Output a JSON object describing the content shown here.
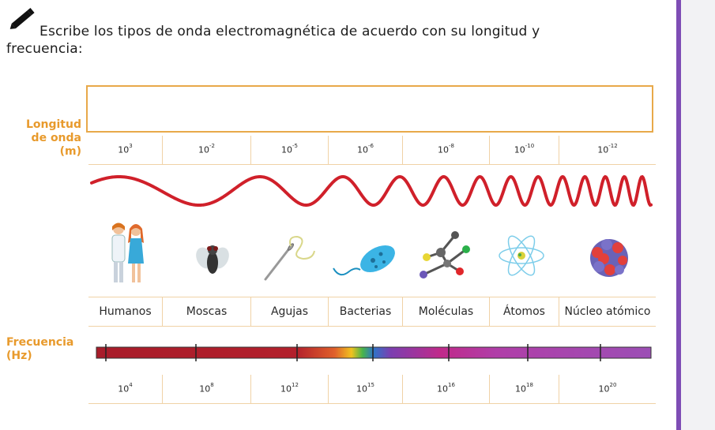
{
  "instruction": {
    "line1": "Escribe los tipos de onda electromagnética de acuerdo con su longitud y",
    "line2": "frecuencia:"
  },
  "axis_labels": {
    "wavelength_line1": "Longitud",
    "wavelength_line2": "de onda (m)",
    "frequency_line1": "Frecuencia",
    "frequency_line2": "(Hz)"
  },
  "wavelengths": [
    {
      "base": "10",
      "exp": "3"
    },
    {
      "base": "10",
      "exp": "-2"
    },
    {
      "base": "10",
      "exp": "-5"
    },
    {
      "base": "10",
      "exp": "-6"
    },
    {
      "base": "10",
      "exp": "-8"
    },
    {
      "base": "10",
      "exp": "-10"
    },
    {
      "base": "10",
      "exp": "-12"
    }
  ],
  "objects": [
    "Humanos",
    "Moscas",
    "Agujas",
    "Bacterias",
    "Moléculas",
    "Átomos",
    "Núcleo atómico"
  ],
  "frequencies": [
    {
      "base": "10",
      "exp": "4"
    },
    {
      "base": "10",
      "exp": "8"
    },
    {
      "base": "10",
      "exp": "12"
    },
    {
      "base": "10",
      "exp": "15"
    },
    {
      "base": "10",
      "exp": "16"
    },
    {
      "base": "10",
      "exp": "18"
    },
    {
      "base": "10",
      "exp": "20"
    }
  ],
  "icons": [
    "pencil-icon",
    "humans-illustration",
    "fly-illustration",
    "needle-illustration",
    "bacteria-illustration",
    "molecule-illustration",
    "atom-illustration",
    "nucleus-illustration"
  ],
  "colors": {
    "accent": "#e89a2c",
    "wave": "#d0202a",
    "border": "#f0d2a6",
    "purple_stripe": "#7e4db5"
  }
}
